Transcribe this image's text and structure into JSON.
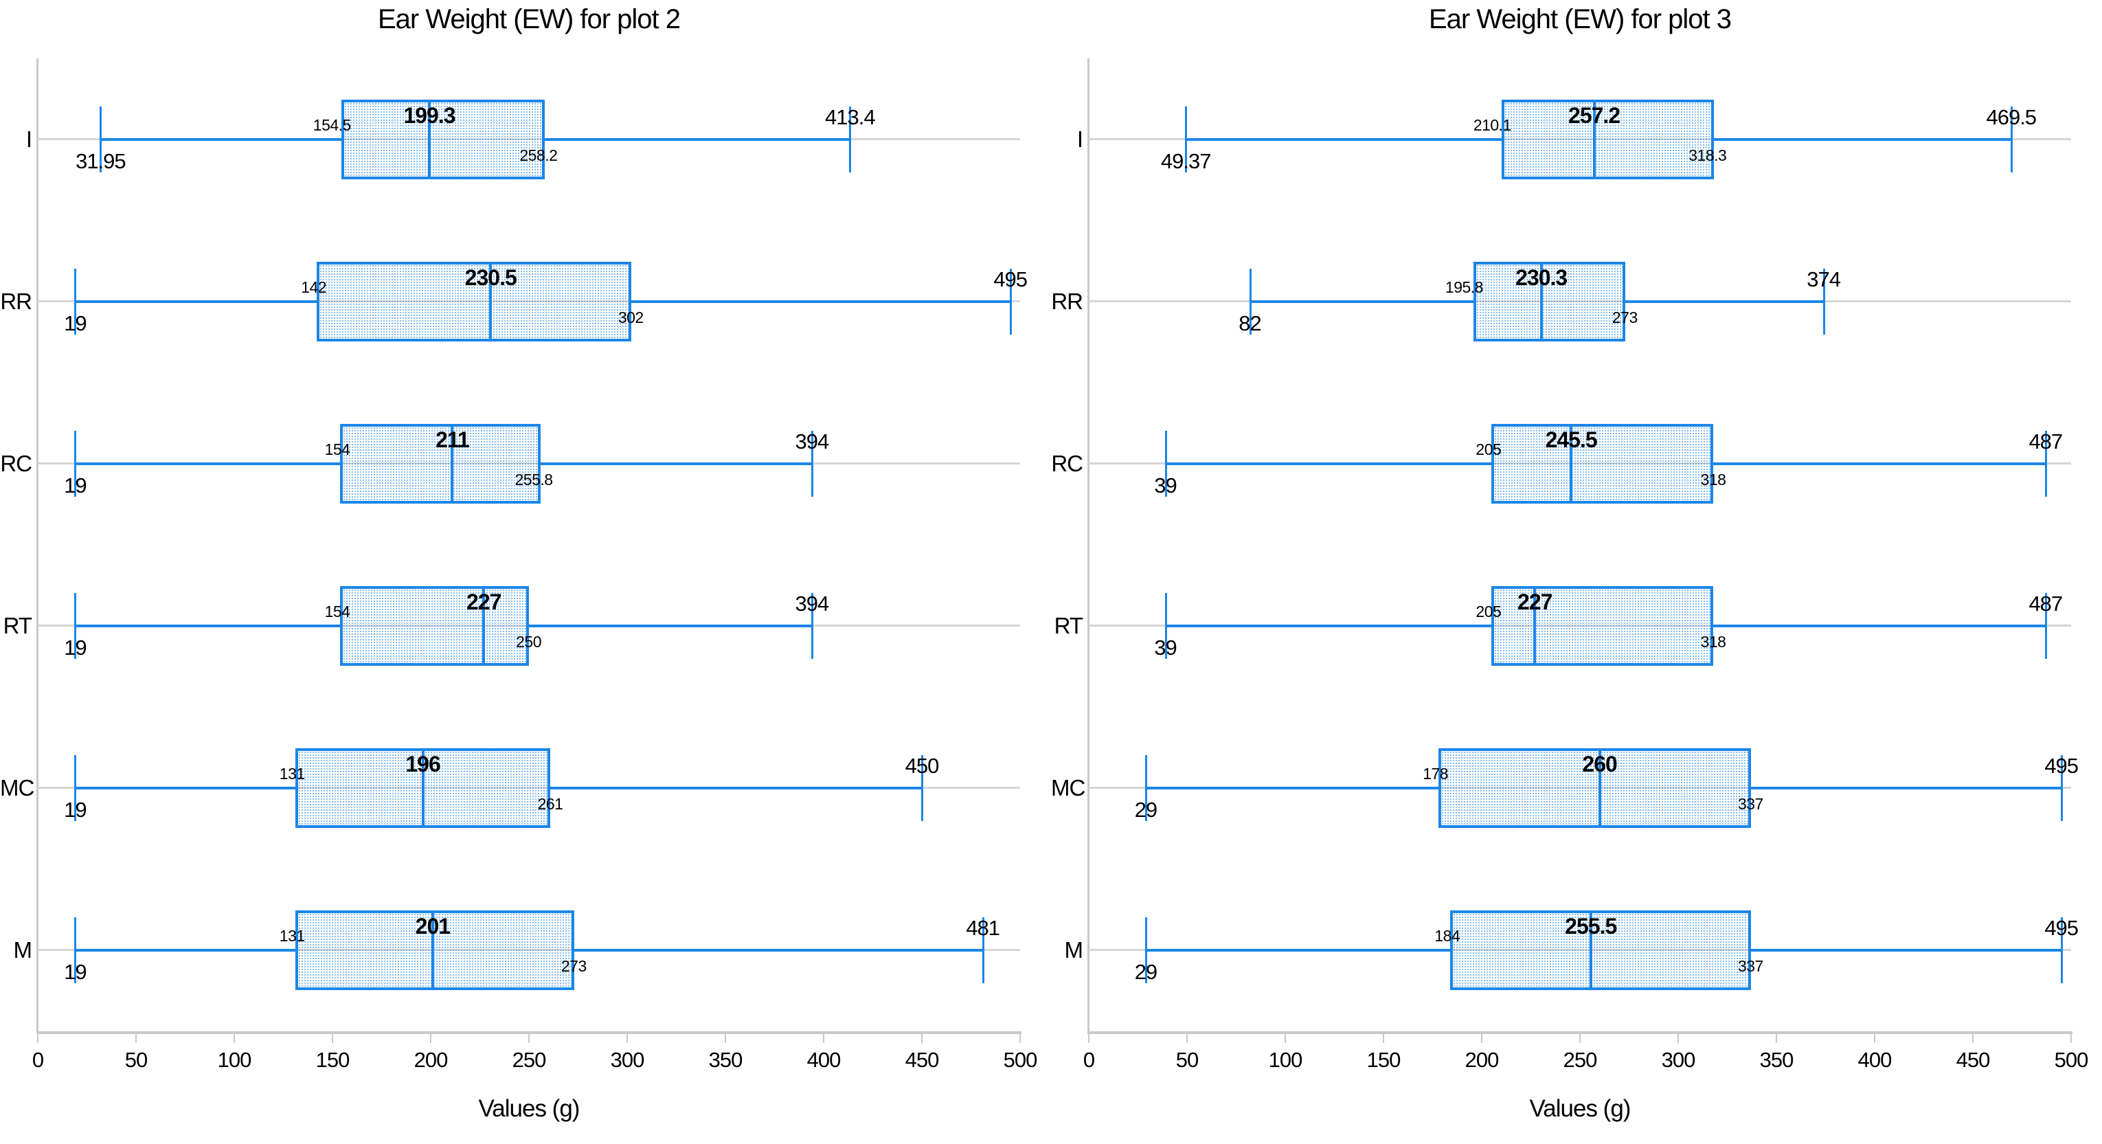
{
  "style": {
    "accent_blue": "#1b86e7",
    "box_dot_fill": "rgba(27,134,231,0.55)",
    "grid_gray": "#d6d6d6",
    "axis_gray": "#c9c9c9",
    "text_color": "#000000"
  },
  "chart_data": [
    {
      "type": "boxplot",
      "orientation": "horizontal",
      "title": "Ear Weight (EW) for plot 2",
      "xlabel": "Values (g)",
      "xlim": [
        0,
        500
      ],
      "x_ticks": [
        0,
        50,
        100,
        150,
        200,
        250,
        300,
        350,
        400,
        450,
        500
      ],
      "grid": "per-category horizontal gray lines",
      "legend": "none",
      "categories": [
        "I",
        "RR",
        "RC",
        "RT",
        "MC",
        "M"
      ],
      "series": [
        {
          "category": "I",
          "min": 31.95,
          "q1": 154.5,
          "median": 199.3,
          "q3": 258.2,
          "max": 413.4
        },
        {
          "category": "RR",
          "min": 19,
          "q1": 142,
          "median": 230.5,
          "q3": 302,
          "max": 495
        },
        {
          "category": "RC",
          "min": 19,
          "q1": 154,
          "median": 211,
          "q3": 255.8,
          "max": 394
        },
        {
          "category": "RT",
          "min": 19,
          "q1": 154,
          "median": 227,
          "q3": 250,
          "max": 394
        },
        {
          "category": "MC",
          "min": 19,
          "q1": 131,
          "median": 196,
          "q3": 261,
          "max": 450
        },
        {
          "category": "M",
          "min": 19,
          "q1": 131,
          "median": 201,
          "q3": 273,
          "max": 481
        }
      ]
    },
    {
      "type": "boxplot",
      "orientation": "horizontal",
      "title": "Ear Weight (EW) for plot 3",
      "xlabel": "Values (g)",
      "xlim": [
        0,
        500
      ],
      "x_ticks": [
        0,
        50,
        100,
        150,
        200,
        250,
        300,
        350,
        400,
        450,
        500
      ],
      "grid": "per-category horizontal gray lines",
      "legend": "none",
      "categories": [
        "I",
        "RR",
        "RC",
        "RT",
        "MC",
        "M"
      ],
      "series": [
        {
          "category": "I",
          "min": 49.37,
          "q1": 210.1,
          "median": 257.2,
          "q3": 318.3,
          "max": 469.5
        },
        {
          "category": "RR",
          "min": 82,
          "q1": 195.8,
          "median": 230.3,
          "q3": 273,
          "max": 374
        },
        {
          "category": "RC",
          "min": 39,
          "q1": 205,
          "median": 245.5,
          "q3": 318,
          "max": 487
        },
        {
          "category": "RT",
          "min": 39,
          "q1": 205,
          "median": 227,
          "q3": 318,
          "max": 487
        },
        {
          "category": "MC",
          "min": 29,
          "q1": 178,
          "median": 260,
          "q3": 337,
          "max": 495
        },
        {
          "category": "M",
          "min": 29,
          "q1": 184,
          "median": 255.5,
          "q3": 337,
          "max": 495
        }
      ]
    }
  ]
}
